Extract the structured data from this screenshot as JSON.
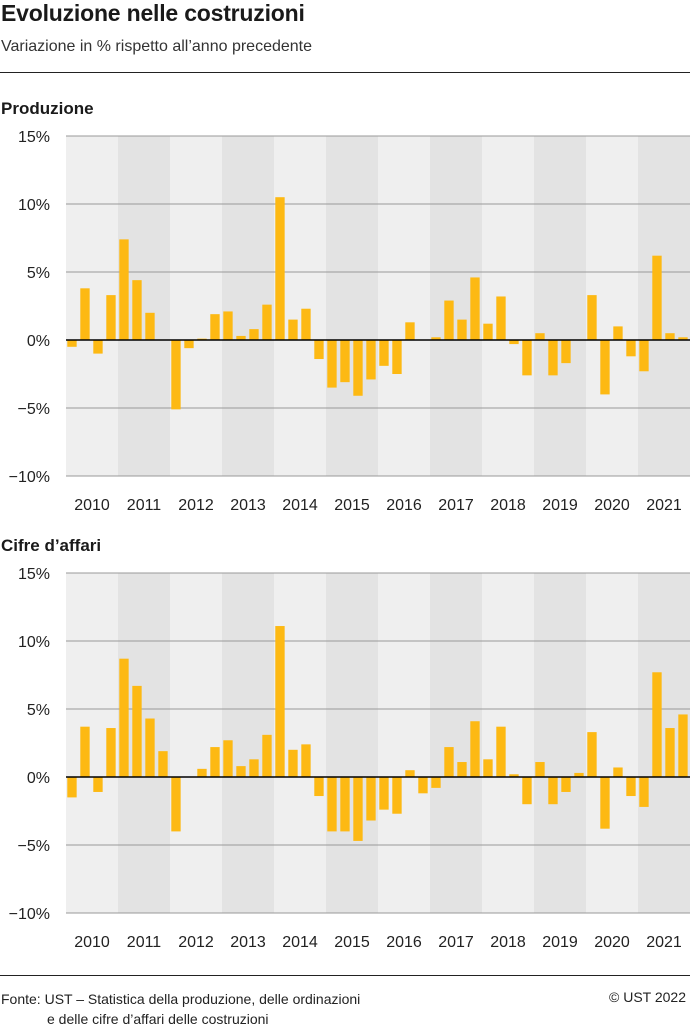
{
  "header": {
    "title": "Evoluzione nelle costruzioni",
    "subtitle": "Variazione in % rispetto all’anno precedente"
  },
  "colors": {
    "bar": "#FDB913",
    "band_light": "#EFEFEF",
    "band_dark": "#E3E3E3",
    "grid": "#9A9A9A",
    "zero_line": "#000000"
  },
  "chart_data": [
    {
      "type": "bar",
      "title": "Produzione",
      "ylim": [
        -10,
        15
      ],
      "yticks": [
        15,
        10,
        5,
        0,
        -5,
        -10
      ],
      "ytick_labels": [
        "15%",
        "10%",
        "5%",
        "0%",
        "−5%",
        "−10%"
      ],
      "years": [
        "2010",
        "2011",
        "2012",
        "2013",
        "2014",
        "2015",
        "2016",
        "2017",
        "2018",
        "2019",
        "2020",
        "2021"
      ],
      "grid": true,
      "values": [
        -0.5,
        3.8,
        -1.0,
        3.3,
        7.4,
        4.4,
        2.0,
        0.0,
        -5.1,
        -0.6,
        0.1,
        1.9,
        2.1,
        0.3,
        0.8,
        2.6,
        10.5,
        1.5,
        2.3,
        -1.4,
        -3.5,
        -3.1,
        -4.1,
        -2.9,
        -1.9,
        -2.5,
        1.3,
        0.0,
        0.2,
        2.9,
        1.5,
        4.6,
        1.2,
        3.2,
        -0.3,
        -2.6,
        0.5,
        -2.6,
        -1.7,
        0.0,
        3.3,
        -4.0,
        1.0,
        -1.2,
        -2.3,
        6.2,
        0.5,
        0.2
      ]
    },
    {
      "type": "bar",
      "title": "Cifre d’affari",
      "ylim": [
        -10,
        15
      ],
      "yticks": [
        15,
        10,
        5,
        0,
        -5,
        -10
      ],
      "ytick_labels": [
        "15%",
        "10%",
        "5%",
        "0%",
        "−5%",
        "−10%"
      ],
      "years": [
        "2010",
        "2011",
        "2012",
        "2013",
        "2014",
        "2015",
        "2016",
        "2017",
        "2018",
        "2019",
        "2020",
        "2021"
      ],
      "grid": true,
      "values": [
        -1.5,
        3.7,
        -1.1,
        3.6,
        8.7,
        6.7,
        4.3,
        1.9,
        -4.0,
        0.0,
        0.6,
        2.2,
        2.7,
        0.8,
        1.3,
        3.1,
        11.1,
        2.0,
        2.4,
        -1.4,
        -4.0,
        -4.0,
        -4.7,
        -3.2,
        -2.4,
        -2.7,
        0.5,
        -1.2,
        -0.8,
        2.2,
        1.1,
        4.1,
        1.3,
        3.7,
        0.2,
        -2.0,
        1.1,
        -2.0,
        -1.1,
        0.3,
        3.3,
        -3.8,
        0.7,
        -1.4,
        -2.2,
        7.7,
        3.6,
        4.6
      ]
    }
  ],
  "footer": {
    "source_line1": "Fonte: UST – Statistica della produzione, delle ordinazioni",
    "source_line2": "e delle cifre d’affari delle costruzioni",
    "copyright": "© UST 2022"
  }
}
